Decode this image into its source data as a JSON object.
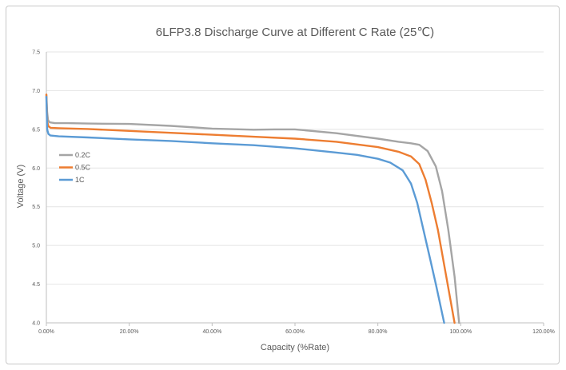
{
  "chart_data": {
    "type": "line",
    "title": "6LFP3.8 Discharge Curve at Different C Rate (25℃)",
    "xlabel": "Capacity (%Rate)",
    "ylabel": "Voltage (V)",
    "xlim": [
      0,
      120
    ],
    "ylim": [
      4.0,
      7.5
    ],
    "x_ticks": [
      "0.00%",
      "20.00%",
      "40.00%",
      "60.00%",
      "80.00%",
      "100.00%",
      "120.00%"
    ],
    "y_ticks": [
      "4.0",
      "4.5",
      "5.0",
      "5.5",
      "6.0",
      "6.5",
      "7.0",
      "7.5"
    ],
    "grid": "horizontal",
    "legend_position": "left",
    "colors": {
      "0.2C": "#a5a5a5",
      "0.5C": "#ed7d31",
      "1C": "#5b9bd5",
      "grid": "#e4e4e4",
      "axis": "#bfbfbf"
    },
    "series": [
      {
        "name": "0.2C",
        "points": [
          [
            0,
            6.95
          ],
          [
            0.2,
            6.72
          ],
          [
            0.4,
            6.62
          ],
          [
            0.8,
            6.59
          ],
          [
            2,
            6.58
          ],
          [
            5,
            6.58
          ],
          [
            10,
            6.575
          ],
          [
            20,
            6.57
          ],
          [
            30,
            6.545
          ],
          [
            40,
            6.51
          ],
          [
            50,
            6.495
          ],
          [
            55,
            6.5
          ],
          [
            60,
            6.5
          ],
          [
            70,
            6.45
          ],
          [
            80,
            6.38
          ],
          [
            85,
            6.34
          ],
          [
            88,
            6.32
          ],
          [
            90,
            6.3
          ],
          [
            92,
            6.22
          ],
          [
            94,
            6.02
          ],
          [
            95.5,
            5.7
          ],
          [
            97,
            5.2
          ],
          [
            98.5,
            4.6
          ],
          [
            99.6,
            4.0
          ]
        ]
      },
      {
        "name": "0.5C",
        "points": [
          [
            0,
            6.95
          ],
          [
            0.2,
            6.6
          ],
          [
            0.5,
            6.54
          ],
          [
            1,
            6.52
          ],
          [
            3,
            6.515
          ],
          [
            10,
            6.505
          ],
          [
            20,
            6.48
          ],
          [
            30,
            6.455
          ],
          [
            40,
            6.43
          ],
          [
            50,
            6.405
          ],
          [
            60,
            6.38
          ],
          [
            70,
            6.34
          ],
          [
            80,
            6.27
          ],
          [
            85,
            6.21
          ],
          [
            88,
            6.15
          ],
          [
            90,
            6.05
          ],
          [
            91.5,
            5.85
          ],
          [
            93,
            5.55
          ],
          [
            94.5,
            5.2
          ],
          [
            96,
            4.75
          ],
          [
            97.5,
            4.3
          ],
          [
            98.5,
            4.0
          ]
        ]
      },
      {
        "name": "1C",
        "points": [
          [
            0,
            6.92
          ],
          [
            0.2,
            6.5
          ],
          [
            0.5,
            6.44
          ],
          [
            1,
            6.42
          ],
          [
            3,
            6.41
          ],
          [
            10,
            6.395
          ],
          [
            20,
            6.37
          ],
          [
            30,
            6.35
          ],
          [
            40,
            6.32
          ],
          [
            50,
            6.295
          ],
          [
            60,
            6.255
          ],
          [
            70,
            6.2
          ],
          [
            75,
            6.17
          ],
          [
            80,
            6.12
          ],
          [
            83,
            6.07
          ],
          [
            86,
            5.97
          ],
          [
            88,
            5.8
          ],
          [
            89.5,
            5.55
          ],
          [
            91,
            5.2
          ],
          [
            92.5,
            4.85
          ],
          [
            94,
            4.5
          ],
          [
            95,
            4.25
          ],
          [
            96,
            4.0
          ]
        ]
      }
    ]
  }
}
